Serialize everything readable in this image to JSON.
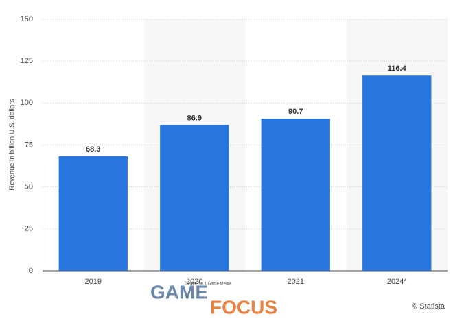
{
  "chart_data": {
    "type": "bar",
    "y_axis_label": "Revenue in billion U.S. dollars",
    "categories": [
      "2019",
      "2020",
      "2021",
      "2024*"
    ],
    "values": [
      68.3,
      86.9,
      90.7,
      116.4
    ],
    "color": "#2876dd",
    "ylim": [
      0,
      150
    ],
    "yticks": [
      0,
      25,
      50,
      75,
      100,
      125,
      150
    ],
    "grid": true,
    "credit": "© Statista"
  },
  "watermark": {
    "tagline": "Global No.1 Game Media",
    "word1": "GAME",
    "word2": "FOCUS"
  }
}
